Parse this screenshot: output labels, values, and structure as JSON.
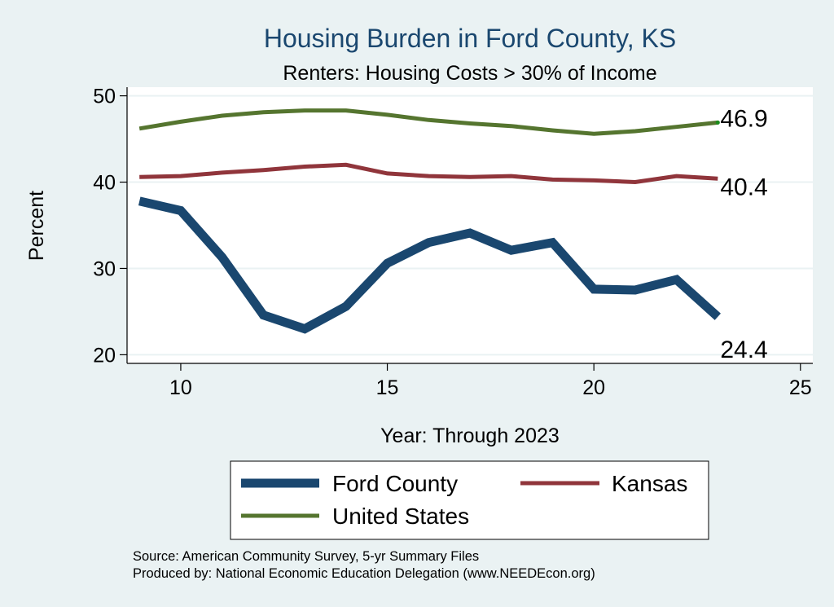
{
  "chart_data": {
    "type": "line",
    "title": "Housing Burden in Ford County, KS",
    "subtitle": "Renters: Housing Costs > 30% of Income",
    "xlabel": "Year: Through 2023",
    "ylabel": "Percent",
    "xlim": [
      8.7,
      25.3
    ],
    "ylim": [
      19,
      51
    ],
    "xticks": [
      10,
      15,
      20,
      25
    ],
    "yticks": [
      20,
      30,
      40,
      50
    ],
    "grid": true,
    "legend": "bottom",
    "x": [
      9,
      10,
      11,
      12,
      13,
      14,
      15,
      16,
      17,
      18,
      19,
      20,
      21,
      22,
      23
    ],
    "series": [
      {
        "name": "Ford County",
        "color": "#1a476f",
        "values": [
          37.8,
          36.7,
          31.3,
          24.6,
          23.0,
          25.6,
          30.6,
          33.0,
          34.1,
          32.1,
          33.0,
          27.6,
          27.5,
          28.7,
          24.4
        ],
        "end_label": "24.4"
      },
      {
        "name": "Kansas",
        "color": "#90353b",
        "values": [
          40.6,
          40.7,
          41.1,
          41.4,
          41.8,
          42.0,
          41.0,
          40.7,
          40.6,
          40.7,
          40.3,
          40.2,
          40.0,
          40.7,
          40.4
        ],
        "end_label": "40.4"
      },
      {
        "name": "United States",
        "color": "#55752f",
        "values": [
          46.2,
          47.0,
          47.7,
          48.1,
          48.3,
          48.3,
          47.8,
          47.2,
          46.8,
          46.5,
          46.0,
          45.6,
          45.9,
          46.4,
          46.9
        ],
        "end_label": "46.9"
      }
    ],
    "notes": [
      "Source: American Community Survey, 5-yr Summary Files",
      "Produced by: National Economic Education Delegation (www.NEEDEcon.org)"
    ]
  }
}
